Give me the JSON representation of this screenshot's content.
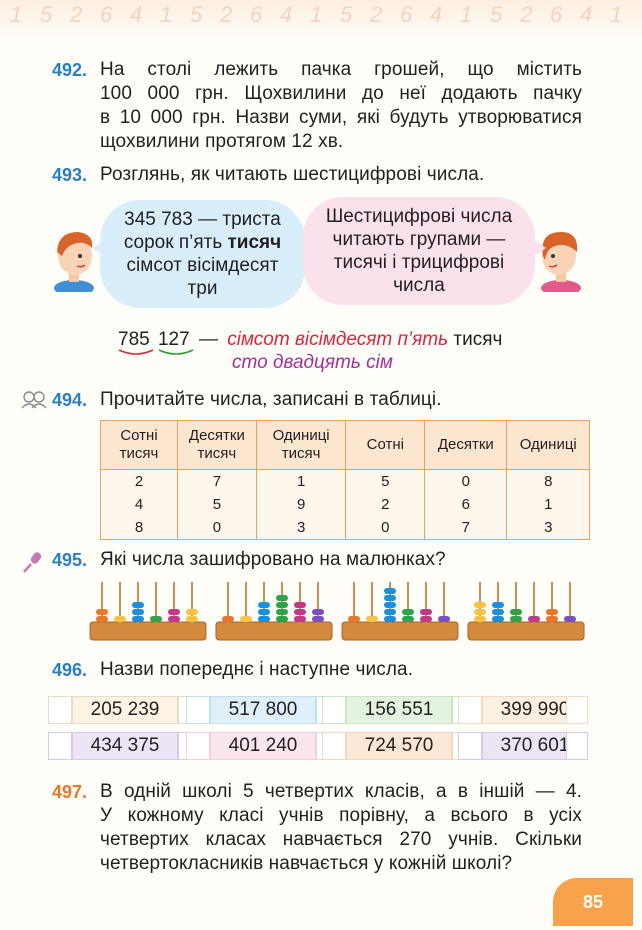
{
  "tasks": {
    "t492": {
      "number": "492.",
      "lines": [
        "На столі лежить пачка грошей, що містить",
        "100 000 грн. Щохвилини до неї додають пачку",
        "в 10 000 грн. Назви суми, які будуть утворюватися",
        "щохвилини протягом 12 хв."
      ]
    },
    "t493": {
      "number": "493.",
      "text": "Розглянь, як читають шестицифрові числа.",
      "bubble_left": {
        "line1": "345 783 — триста",
        "line2a": "сорок п’ять ",
        "line2b": "тисяч",
        "line3": "сімсот вісімдесят",
        "line4": "три"
      },
      "bubble_right": {
        "line1": "Шестицифрові числа",
        "line2": "читають групами —",
        "line3": "тисячі і трицифрові",
        "line4": "числа"
      },
      "example": {
        "num_a": "785",
        "num_b": "127",
        "dash": "—",
        "red": "сімсот вісімдесят п’ять",
        "word": "тисяч",
        "purple": "сто двадцять сім"
      }
    },
    "t494": {
      "number": "494.",
      "text": "Прочитайте числа, записані в таблиці.",
      "headers": [
        [
          "Сотні",
          "тисяч"
        ],
        [
          "Десятки",
          "тисяч"
        ],
        [
          "Одиниці",
          "тисяч"
        ],
        [
          "Сотні",
          ""
        ],
        [
          "Десятки",
          ""
        ],
        [
          "Одиниці",
          ""
        ]
      ],
      "rows": [
        [
          "2",
          "7",
          "1",
          "5",
          "0",
          "8"
        ],
        [
          "4",
          "5",
          "9",
          "2",
          "6",
          "1"
        ],
        [
          "8",
          "0",
          "3",
          "0",
          "7",
          "3"
        ]
      ]
    },
    "t495": {
      "number": "495.",
      "text": "Які числа зашифровано на малюнках?"
    },
    "t496": {
      "number": "496.",
      "text": "Назви попереднє і наступне числа.",
      "row1": [
        "205 239",
        "517 800",
        "156 551",
        "399 990"
      ],
      "row2": [
        "434 375",
        "401 240",
        "724 570",
        "370 601"
      ]
    },
    "t497": {
      "number": "497.",
      "lines": [
        "В одній школі 5 четвертих класів, а в іншій — 4.",
        "У кожному класі учнів порівну, а всього в усіх",
        "четвертих класах навчається 270 учнів. Скільки",
        "четвертокласників навчається у кожній школі?"
      ]
    }
  },
  "page_number": "85",
  "colors": {
    "number_blue": "#2b7fc3",
    "number_orange": "#e8792c",
    "red_reading": "#d7263d",
    "purple_reading": "#a3309a",
    "table_border": "#e6a15f",
    "page_badge": "#f8a24b"
  },
  "icons": [
    "pair-work-icon",
    "microphone-icon",
    "boy-avatar",
    "girl-avatar",
    "abacus-image"
  ]
}
